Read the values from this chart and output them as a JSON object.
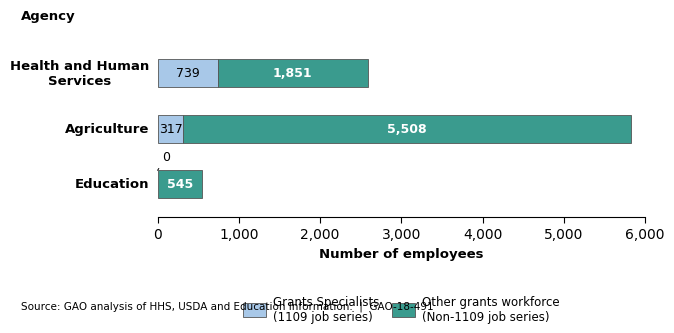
{
  "agencies": [
    "Health and Human\nServices",
    "Agriculture",
    "Education"
  ],
  "grants_specialists": [
    739,
    317,
    0
  ],
  "other_grants": [
    1851,
    5508,
    545
  ],
  "grants_color": "#a8c8e8",
  "other_color": "#3a9b8e",
  "bar_height": 0.5,
  "xlim": [
    0,
    6000
  ],
  "xticks": [
    0,
    1000,
    2000,
    3000,
    4000,
    5000,
    6000
  ],
  "xlabel": "Number of employees",
  "legend_labels": [
    "Grants Specialists\n(1109 job series)",
    "Other grants workforce\n(Non-1109 job series)"
  ],
  "source_text": "Source: GAO analysis of HHS, USDA and Education Information.  |  GAO-18-491",
  "label_color_dark": "#000000",
  "label_color_white": "#ffffff",
  "gs_label_vals": [
    "739",
    "317",
    ""
  ],
  "og_label_vals": [
    "1,851",
    "5,508",
    "545"
  ],
  "education_zero_label": "0"
}
